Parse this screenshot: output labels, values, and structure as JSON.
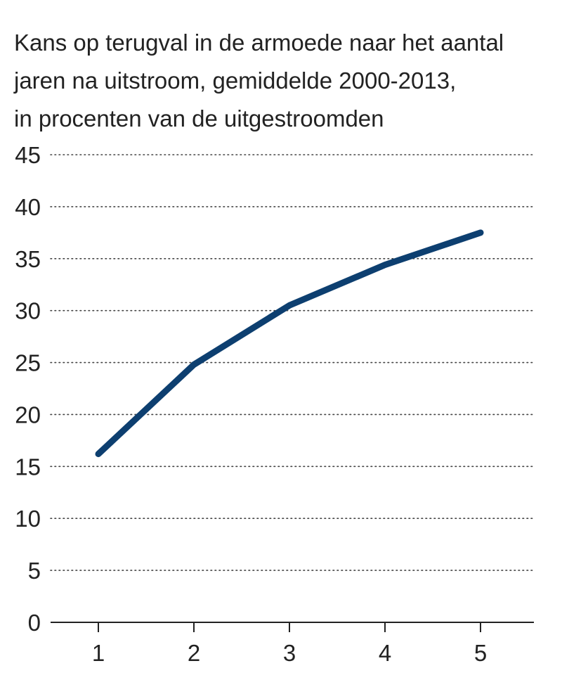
{
  "title_lines": [
    "Kans op terugval in de armoede naar het aantal",
    "jaren na uitstroom, gemiddelde 2000-2013,",
    "in procenten van de uitgestroomden"
  ],
  "chart_data": {
    "type": "line",
    "title": "Kans op terugval in de armoede naar het aantal jaren na uitstroom, gemiddelde 2000-2013, in procenten van de uitgestroomden",
    "x": [
      1,
      2,
      3,
      4,
      5
    ],
    "series": [
      {
        "values": [
          16.2,
          24.8,
          30.5,
          34.4,
          37.5
        ]
      }
    ],
    "xticks": [
      "1",
      "2",
      "3",
      "4",
      "5"
    ],
    "yticks": [
      "0",
      "5",
      "10",
      "15",
      "20",
      "25",
      "30",
      "35",
      "40",
      "45"
    ],
    "ylim": [
      0,
      45
    ],
    "xlim": [
      0.5,
      5.5
    ],
    "grid": true,
    "grid_style": "dotted",
    "line_color": "#0d3f70",
    "text_color": "#222222"
  }
}
